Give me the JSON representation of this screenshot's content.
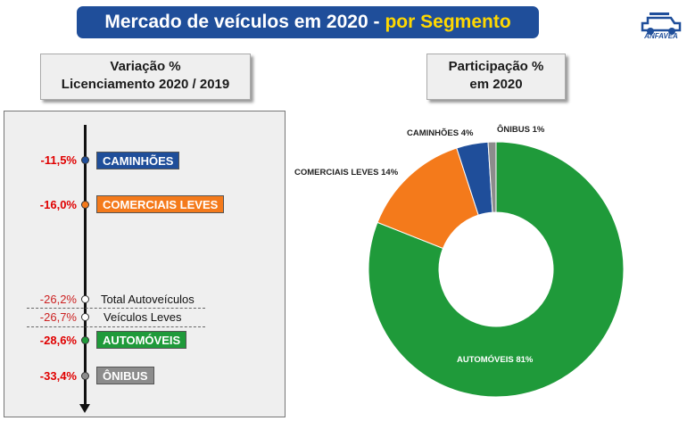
{
  "header": {
    "title_main": "Mercado de veículos em 2020 - ",
    "title_highlight": "por Segmento"
  },
  "logo": {
    "text": "ANFAVEA"
  },
  "left_box": {
    "line1": "Variação %",
    "line2": "Licenciamento 2020 / 2019"
  },
  "right_box": {
    "line1": "Participação %",
    "line2": "em 2020"
  },
  "colors": {
    "caminhoes": "#1f4e9a",
    "comerciais_leves": "#f47a1b",
    "automoveis": "#1f9a3a",
    "onibus": "#8c8c8c",
    "accent_red": "#e00000",
    "banner": "#1f4e9a",
    "highlight": "#ffd800"
  },
  "chart_data": [
    {
      "type": "bar",
      "title": "Variação % Licenciamento 2020 / 2019",
      "categories": [
        "CAMINHÕES",
        "COMERCIAIS LEVES",
        "Total Autoveículos",
        "Veículos Leves",
        "AUTOMÓVEIS",
        "ÔNIBUS"
      ],
      "values": [
        -11.5,
        -16.0,
        -26.2,
        -26.7,
        -28.6,
        -33.4
      ],
      "labels": [
        "-11,5%",
        "-16,0%",
        "-26,2%",
        "-26,7%",
        "-28,6%",
        "-33,4%"
      ]
    },
    {
      "type": "pie",
      "title": "Participação % em 2020",
      "categories": [
        "AUTOMÓVEIS",
        "COMERCIAIS LEVES",
        "CAMINHÕES",
        "ÔNIBUS"
      ],
      "values": [
        81,
        14,
        4,
        1
      ],
      "labels": [
        "AUTOMÓVEIS 81%",
        "COMERCIAIS LEVES 14%",
        "CAMINHÕES 4%",
        "ÔNIBUS 1%"
      ]
    }
  ]
}
